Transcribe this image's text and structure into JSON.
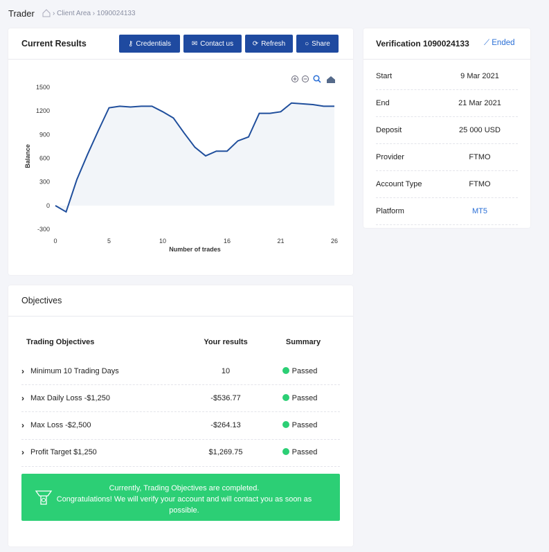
{
  "header": {
    "title": "Trader",
    "breadcrumb": [
      "Client Area",
      "1090024133"
    ]
  },
  "results": {
    "title": "Current Results",
    "buttons": [
      "Credentials",
      "Contact us",
      "Refresh",
      "Share"
    ]
  },
  "chart_data": {
    "type": "line",
    "x": [
      0,
      1,
      2,
      3,
      4,
      5,
      6,
      7,
      8,
      9,
      10,
      11,
      12,
      13,
      14,
      15,
      16,
      17,
      18,
      19,
      20,
      21,
      22,
      23,
      24,
      25,
      26
    ],
    "values": [
      0,
      -80,
      330,
      650,
      950,
      1240,
      1260,
      1250,
      1260,
      1260,
      1190,
      1110,
      920,
      740,
      630,
      690,
      690,
      820,
      870,
      1170,
      1170,
      1190,
      1300,
      1290,
      1280,
      1260,
      1260
    ],
    "xlabel": "Number of trades",
    "ylabel": "Balance",
    "xlim": [
      0,
      26
    ],
    "ylim": [
      -300,
      1500
    ],
    "xticks": [
      0,
      5,
      10,
      16,
      21,
      26
    ],
    "yticks": [
      -300,
      0,
      300,
      600,
      900,
      1200,
      1500
    ],
    "color": "#1f4e9c"
  },
  "verification": {
    "title": "Verification 1090024133",
    "status": "Ended",
    "rows": [
      [
        "Start",
        "9 Mar 2021"
      ],
      [
        "End",
        "21 Mar 2021"
      ],
      [
        "Deposit",
        "25 000 USD"
      ],
      [
        "Provider",
        "FTMO"
      ],
      [
        "Account Type",
        "FTMO"
      ],
      [
        "Platform",
        "MT5"
      ]
    ]
  },
  "objectives": {
    "title": "Objectives",
    "columns": [
      "Trading Objectives",
      "Your results",
      "Summary"
    ],
    "rows": [
      [
        "Minimum 10 Trading Days",
        "10",
        "Passed"
      ],
      [
        "Max Daily Loss -$1,250",
        "-$536.77",
        "Passed"
      ],
      [
        "Max Loss -$2,500",
        "-$264.13",
        "Passed"
      ],
      [
        "Profit Target $1,250",
        "$1,269.75",
        "Passed"
      ]
    ],
    "message": [
      "Currently, Trading Objectives are completed.",
      "Congratulations! We will verify your account and will contact you as soon as possible."
    ]
  }
}
